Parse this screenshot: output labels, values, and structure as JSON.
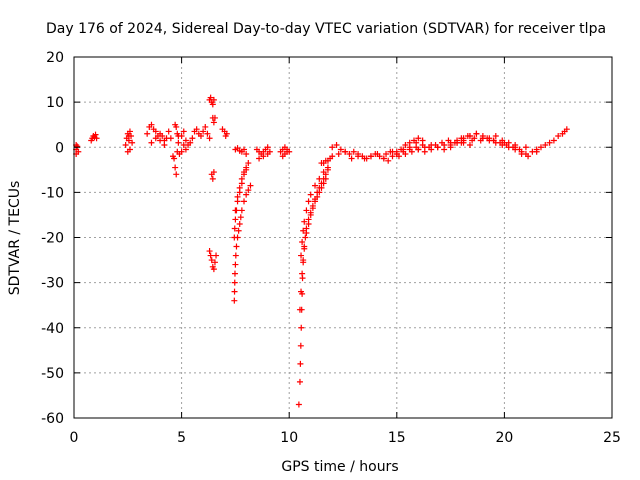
{
  "chart_data": {
    "type": "scatter",
    "title": "Day 176 of 2024, Sidereal Day-to-day VTEC variation (SDTVAR) for receiver tlpa",
    "xlabel": "GPS time / hours",
    "ylabel": "SDTVAR / TECUs",
    "xlim": [
      0,
      25
    ],
    "ylim": [
      -60,
      20
    ],
    "xticks": [
      0,
      5,
      10,
      15,
      20,
      25
    ],
    "yticks": [
      -60,
      -50,
      -40,
      -30,
      -20,
      -10,
      0,
      10,
      20
    ],
    "grid": true,
    "marker": "+",
    "series_color": "#ff0000",
    "series": [
      {
        "name": "SDTVAR",
        "x": [
          0.1,
          0.1,
          0.1,
          0.15,
          0.2,
          0.8,
          0.85,
          0.9,
          0.95,
          1.0,
          1.05,
          2.4,
          2.45,
          2.5,
          2.55,
          2.6,
          2.65,
          2.7,
          2.5,
          2.55,
          2.6,
          3.4,
          3.5,
          3.6,
          3.7,
          3.8,
          3.9,
          4.0,
          4.1,
          4.2,
          4.3,
          4.4,
          4.5,
          3.6,
          3.8,
          4.0,
          4.2,
          4.6,
          4.65,
          4.7,
          4.75,
          4.8,
          4.85,
          4.7,
          4.75,
          4.8,
          4.85,
          4.9,
          5.0,
          5.1,
          5.2,
          5.3,
          5.0,
          5.1,
          5.2,
          5.4,
          5.5,
          5.6,
          5.7,
          5.8,
          5.9,
          6.0,
          6.1,
          6.2,
          6.3,
          6.3,
          6.35,
          6.4,
          6.45,
          6.5,
          6.45,
          6.5,
          6.55,
          6.4,
          6.45,
          6.5,
          6.3,
          6.35,
          6.4,
          6.45,
          6.5,
          6.55,
          6.6,
          6.9,
          7.0,
          7.05,
          7.1,
          7.5,
          7.6,
          7.7,
          7.8,
          7.9,
          8.0,
          7.45,
          7.46,
          7.47,
          7.48,
          7.5,
          7.52,
          7.55,
          7.6,
          7.65,
          7.7,
          7.75,
          7.8,
          7.9,
          8.0,
          8.1,
          8.2,
          7.45,
          7.47,
          7.5,
          7.55,
          7.6,
          7.7,
          7.8,
          7.9,
          8.0,
          7.5,
          7.6,
          7.7,
          7.8,
          7.9,
          8.0,
          8.1,
          8.5,
          8.6,
          8.7,
          8.8,
          8.9,
          9.0,
          9.1,
          8.6,
          8.8,
          9.0,
          9.6,
          9.7,
          9.8,
          9.9,
          10.0,
          9.7,
          9.8,
          9.9,
          10.45,
          10.5,
          10.52,
          10.54,
          10.56,
          10.58,
          10.6,
          10.62,
          10.65,
          10.7,
          10.75,
          10.8,
          10.9,
          11.0,
          11.1,
          11.2,
          11.3,
          11.4,
          11.5,
          11.6,
          11.7,
          11.8,
          10.5,
          10.55,
          10.6,
          10.65,
          10.7,
          10.8,
          10.9,
          11.0,
          11.1,
          11.2,
          11.3,
          11.4,
          11.5,
          11.6,
          11.7,
          10.55,
          10.6,
          10.65,
          10.7,
          10.8,
          10.9,
          11.0,
          11.2,
          11.4,
          11.6,
          11.8,
          11.5,
          11.6,
          11.7,
          11.8,
          11.9,
          12.0,
          12.2,
          12.4,
          12.6,
          12.8,
          13.0,
          13.2,
          13.4,
          13.6,
          13.8,
          14.0,
          14.2,
          14.4,
          14.6,
          14.8,
          15.0,
          15.2,
          15.4,
          15.6,
          15.8,
          16.0,
          12.0,
          12.3,
          12.6,
          12.9,
          13.2,
          13.5,
          13.8,
          14.1,
          14.4,
          14.7,
          15.0,
          15.3,
          15.6,
          15.9,
          16.2,
          14.5,
          14.8,
          15.1,
          15.4,
          15.7,
          16.0,
          16.3,
          16.6,
          16.9,
          17.2,
          17.5,
          17.8,
          18.1,
          18.4,
          15.0,
          15.3,
          15.6,
          15.9,
          16.2,
          16.5,
          16.8,
          17.1,
          17.4,
          17.7,
          18.0,
          18.3,
          18.6,
          18.9,
          19.2,
          19.5,
          19.8,
          20.1,
          20.4,
          20.7,
          21.0,
          16.0,
          16.3,
          16.6,
          16.9,
          17.2,
          17.5,
          17.8,
          18.1,
          18.4,
          18.7,
          19.0,
          19.3,
          19.6,
          19.9,
          20.2,
          20.5,
          20.8,
          17.5,
          17.8,
          18.1,
          18.4,
          18.7,
          19.0,
          19.3,
          19.6,
          19.9,
          20.2,
          20.5,
          20.8,
          21.1,
          18.0,
          18.5,
          19.0,
          19.5,
          20.0,
          20.5,
          21.0,
          21.5,
          21.3,
          21.5,
          21.7,
          21.9,
          22.1,
          22.3,
          22.5,
          22.7,
          22.8,
          22.9
        ],
        "y": [
          -1.5,
          0.5,
          -0.5,
          0.2,
          -1.0,
          1.5,
          2.0,
          2.5,
          2.2,
          2.8,
          2.0,
          0.5,
          2.0,
          3.0,
          1.5,
          -0.5,
          2.5,
          1.0,
          -1.0,
          2.5,
          3.5,
          3.0,
          4.5,
          5.0,
          4.0,
          3.5,
          2.5,
          3.0,
          2.5,
          1.5,
          2.0,
          3.5,
          2.0,
          1.0,
          2.0,
          1.5,
          0.5,
          -2.0,
          -2.5,
          -4.5,
          -6.0,
          -1.0,
          2.5,
          5.0,
          4.5,
          3.0,
          1.0,
          -1.5,
          2.5,
          3.5,
          1.5,
          0.5,
          -1.0,
          0.5,
          -0.5,
          1.0,
          2.0,
          3.5,
          4.0,
          3.0,
          2.5,
          3.5,
          4.5,
          3.0,
          2.0,
          10.5,
          11.0,
          10.0,
          9.5,
          10.5,
          6.5,
          5.5,
          6.5,
          -6.0,
          -7.0,
          -5.5,
          -23.0,
          -24.0,
          -25.0,
          -26.5,
          -27.0,
          -25.5,
          -24.0,
          4.0,
          3.5,
          2.5,
          3.0,
          -0.5,
          -0.2,
          -0.8,
          -1.0,
          -0.5,
          -1.5,
          -34.0,
          -32.0,
          -30.0,
          -28.0,
          -26.0,
          -24.0,
          -22.0,
          -20.0,
          -18.5,
          -17.0,
          -15.5,
          -14.0,
          -12.0,
          -10.5,
          -9.5,
          -8.5,
          -20.0,
          -18.0,
          -16.0,
          -14.0,
          -12.0,
          -10.0,
          -8.0,
          -6.0,
          -5.0,
          -14.0,
          -11.0,
          -9.0,
          -7.0,
          -5.5,
          -4.5,
          -3.5,
          -0.5,
          -1.0,
          -1.5,
          -1.0,
          -0.5,
          0.0,
          -1.0,
          -2.5,
          -2.0,
          -1.5,
          -1.0,
          -0.5,
          0.0,
          -0.5,
          -1.0,
          -2.0,
          -1.5,
          -1.0,
          -57.0,
          -52.0,
          -48.0,
          -44.0,
          -40.0,
          -36.0,
          -32.5,
          -29.0,
          -25.5,
          -22.5,
          -20.0,
          -18.0,
          -16.0,
          -14.5,
          -13.0,
          -11.5,
          -10.0,
          -9.0,
          -8.0,
          -7.0,
          -6.0,
          -5.0,
          -36.0,
          -32.0,
          -28.0,
          -25.0,
          -22.0,
          -19.0,
          -17.0,
          -15.0,
          -13.5,
          -12.0,
          -11.0,
          -10.0,
          -9.0,
          -8.0,
          -7.0,
          -24.0,
          -21.0,
          -18.5,
          -16.5,
          -14.0,
          -12.0,
          -10.5,
          -8.5,
          -7.0,
          -5.5,
          -4.5,
          -3.5,
          -3.5,
          -3.0,
          -3.0,
          -2.5,
          0.0,
          0.5,
          -0.5,
          -1.0,
          -1.5,
          -1.0,
          -1.5,
          -2.0,
          -2.5,
          -2.0,
          -1.5,
          -2.0,
          -2.5,
          -3.0,
          -2.0,
          -1.5,
          -0.5,
          0.5,
          1.0,
          1.5,
          2.0,
          -2.0,
          -1.5,
          -1.0,
          -2.5,
          -2.0,
          -2.5,
          -2.0,
          -1.5,
          -2.5,
          -1.0,
          -1.5,
          -1.0,
          0.0,
          1.0,
          1.5,
          -1.5,
          -1.0,
          -2.0,
          -1.5,
          -1.0,
          -0.5,
          -1.0,
          -0.5,
          0.0,
          0.5,
          1.0,
          1.5,
          1.0,
          0.5,
          -1.0,
          -0.5,
          -0.5,
          0.0,
          0.5,
          0.0,
          0.5,
          1.0,
          1.5,
          1.0,
          2.0,
          2.5,
          2.0,
          1.5,
          2.0,
          1.5,
          1.0,
          0.5,
          0.0,
          -0.5,
          -1.5,
          -0.5,
          0.0,
          0.5,
          0.0,
          -0.5,
          0.5,
          1.0,
          1.5,
          2.5,
          3.0,
          2.5,
          2.0,
          2.5,
          1.5,
          1.0,
          0.0,
          -1.0,
          0.0,
          1.0,
          2.0,
          2.5,
          3.0,
          2.0,
          1.5,
          1.0,
          0.5,
          0.0,
          -0.5,
          -1.5,
          -2.0,
          1.0,
          1.5,
          2.0,
          1.5,
          1.0,
          0.5,
          0.0,
          -1.0,
          -1.0,
          -0.5,
          0.0,
          0.5,
          1.0,
          1.5,
          2.5,
          3.0,
          3.5,
          4.0
        ]
      }
    ]
  }
}
